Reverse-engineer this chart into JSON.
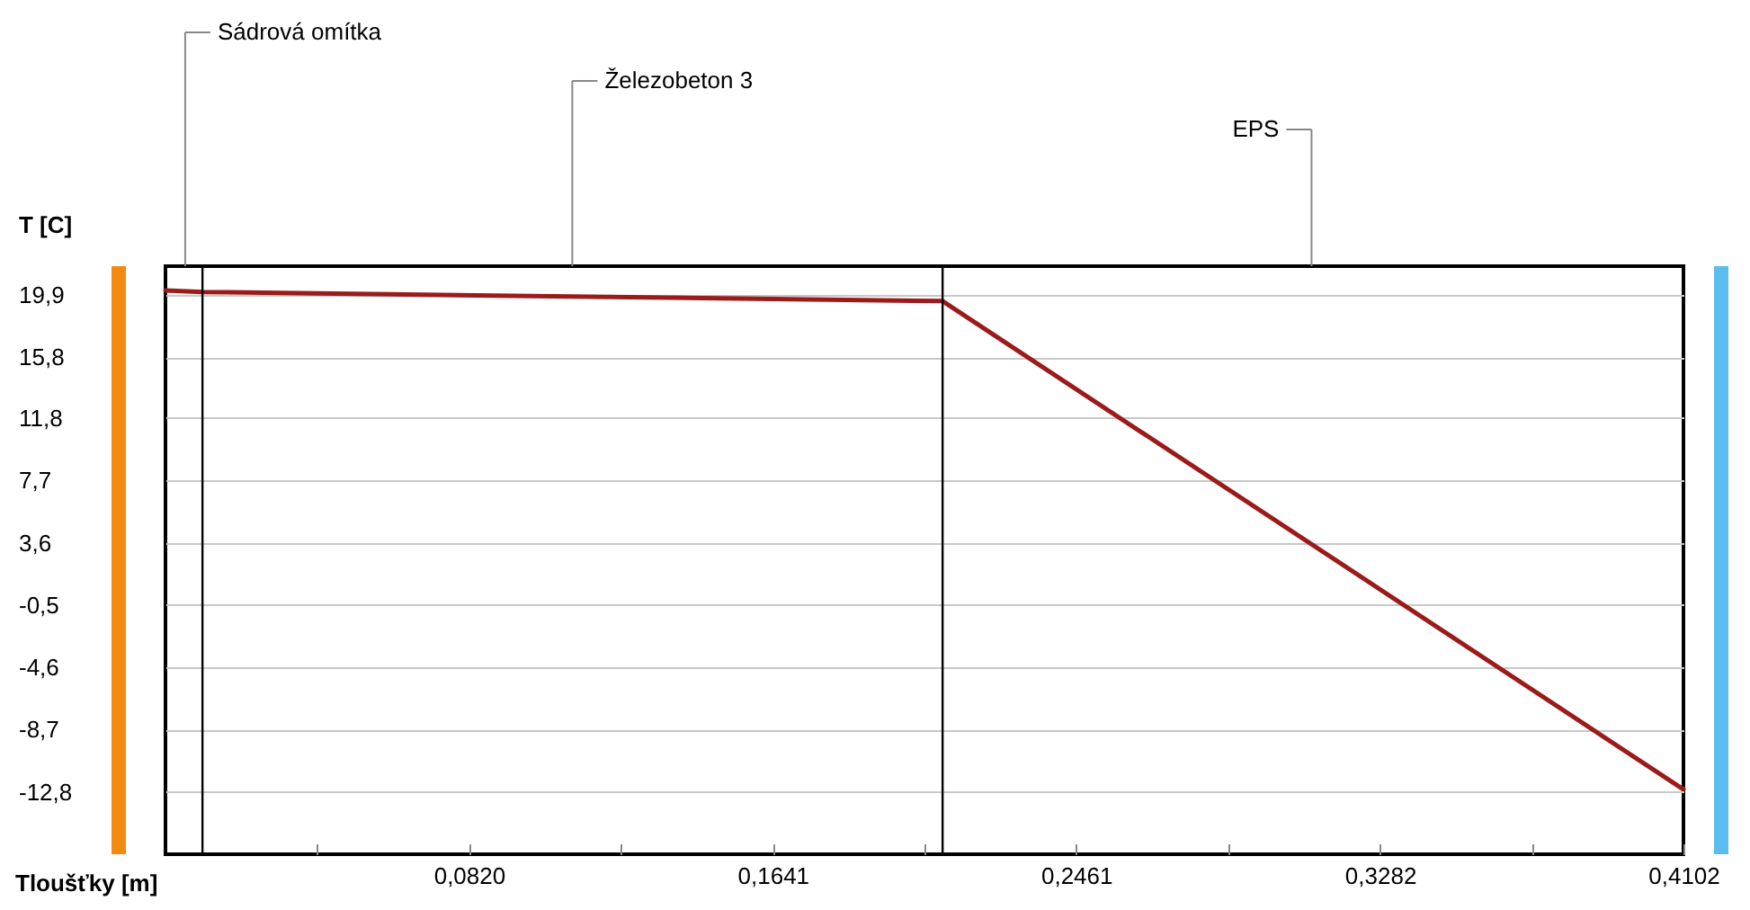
{
  "chart_data": {
    "type": "line",
    "xlabel": "Tloušťky [m]",
    "ylabel": "T [C]",
    "x": [
      0,
      0.01,
      0.21,
      0.41,
      0.4102
    ],
    "series": [
      {
        "color": "#9b1b1b",
        "values": [
          20.2,
          20.1,
          19.5,
          -12.6,
          -12.6
        ]
      }
    ],
    "xlim": [
      0,
      0.4102
    ],
    "xticks": [
      {
        "value": 0.041,
        "label": null
      },
      {
        "value": 0.082,
        "label": "0,0820"
      },
      {
        "value": 0.1231,
        "label": null
      },
      {
        "value": 0.1641,
        "label": "0,1641"
      },
      {
        "value": 0.2051,
        "label": null
      },
      {
        "value": 0.2461,
        "label": "0,2461"
      },
      {
        "value": 0.2872,
        "label": null
      },
      {
        "value": 0.3282,
        "label": "0,3282"
      },
      {
        "value": 0.3692,
        "label": null
      },
      {
        "value": 0.4102,
        "label": "0,4102"
      }
    ],
    "ylim": [
      -16.9,
      21.8
    ],
    "yticks": [
      {
        "value": 19.9,
        "label": "19,9"
      },
      {
        "value": 15.8,
        "label": "15,8"
      },
      {
        "value": 11.8,
        "label": "11,8"
      },
      {
        "value": 7.7,
        "label": "7,7"
      },
      {
        "value": 3.6,
        "label": "3,6"
      },
      {
        "value": -0.5,
        "label": "-0,5"
      },
      {
        "value": -4.6,
        "label": "-4,6"
      },
      {
        "value": -8.7,
        "label": "-8,7"
      },
      {
        "value": -12.8,
        "label": "-12,8"
      }
    ],
    "grid": "y",
    "ref_lines": [
      {
        "axis": "x",
        "value": 0.01,
        "color": "#000000"
      },
      {
        "axis": "x",
        "value": 0.21,
        "color": "#000000"
      }
    ],
    "annotations": [
      "Sádrová omítka",
      "Železobeton 3",
      "EPS"
    ]
  }
}
